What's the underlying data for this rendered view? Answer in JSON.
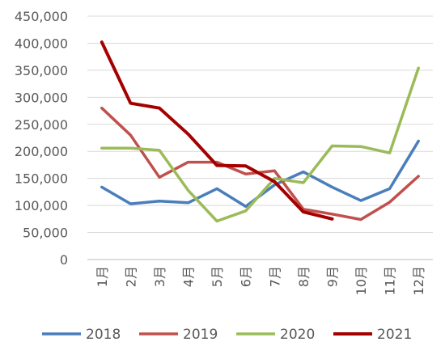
{
  "chart_data": {
    "type": "line",
    "title": "",
    "xlabel": "",
    "ylabel": "",
    "categories": [
      "1月",
      "2月",
      "3月",
      "4月",
      "5月",
      "6月",
      "7月",
      "8月",
      "9月",
      "10月",
      "11月",
      "12月"
    ],
    "ylim": [
      0,
      450000
    ],
    "y_ticks": [
      0,
      50000,
      100000,
      150000,
      200000,
      250000,
      300000,
      350000,
      400000,
      450000
    ],
    "y_tick_labels": [
      "0",
      "50,000",
      "100,000",
      "150,000",
      "200,000",
      "250,000",
      "300,000",
      "350,000",
      "400,000",
      "450,000"
    ],
    "grid": "horizontal",
    "legend_position": "bottom",
    "series": [
      {
        "name": "2018",
        "color": "#4a7ebb",
        "values": [
          134000,
          103000,
          108000,
          105000,
          131000,
          98000,
          138000,
          162000,
          134000,
          109000,
          131000,
          219000
        ]
      },
      {
        "name": "2019",
        "color": "#c0504d",
        "values": [
          280000,
          230000,
          152000,
          180000,
          180000,
          158000,
          164000,
          93000,
          84000,
          74000,
          106000,
          154000
        ]
      },
      {
        "name": "2020",
        "color": "#9bbb59",
        "values": [
          206000,
          206000,
          202000,
          128000,
          71000,
          90000,
          150000,
          142000,
          210000,
          209000,
          197000,
          354000
        ]
      },
      {
        "name": "2021",
        "color": "#a50000",
        "values": [
          402000,
          289000,
          280000,
          232000,
          174000,
          173000,
          144000,
          88000,
          75000,
          null,
          null,
          null
        ]
      }
    ]
  }
}
